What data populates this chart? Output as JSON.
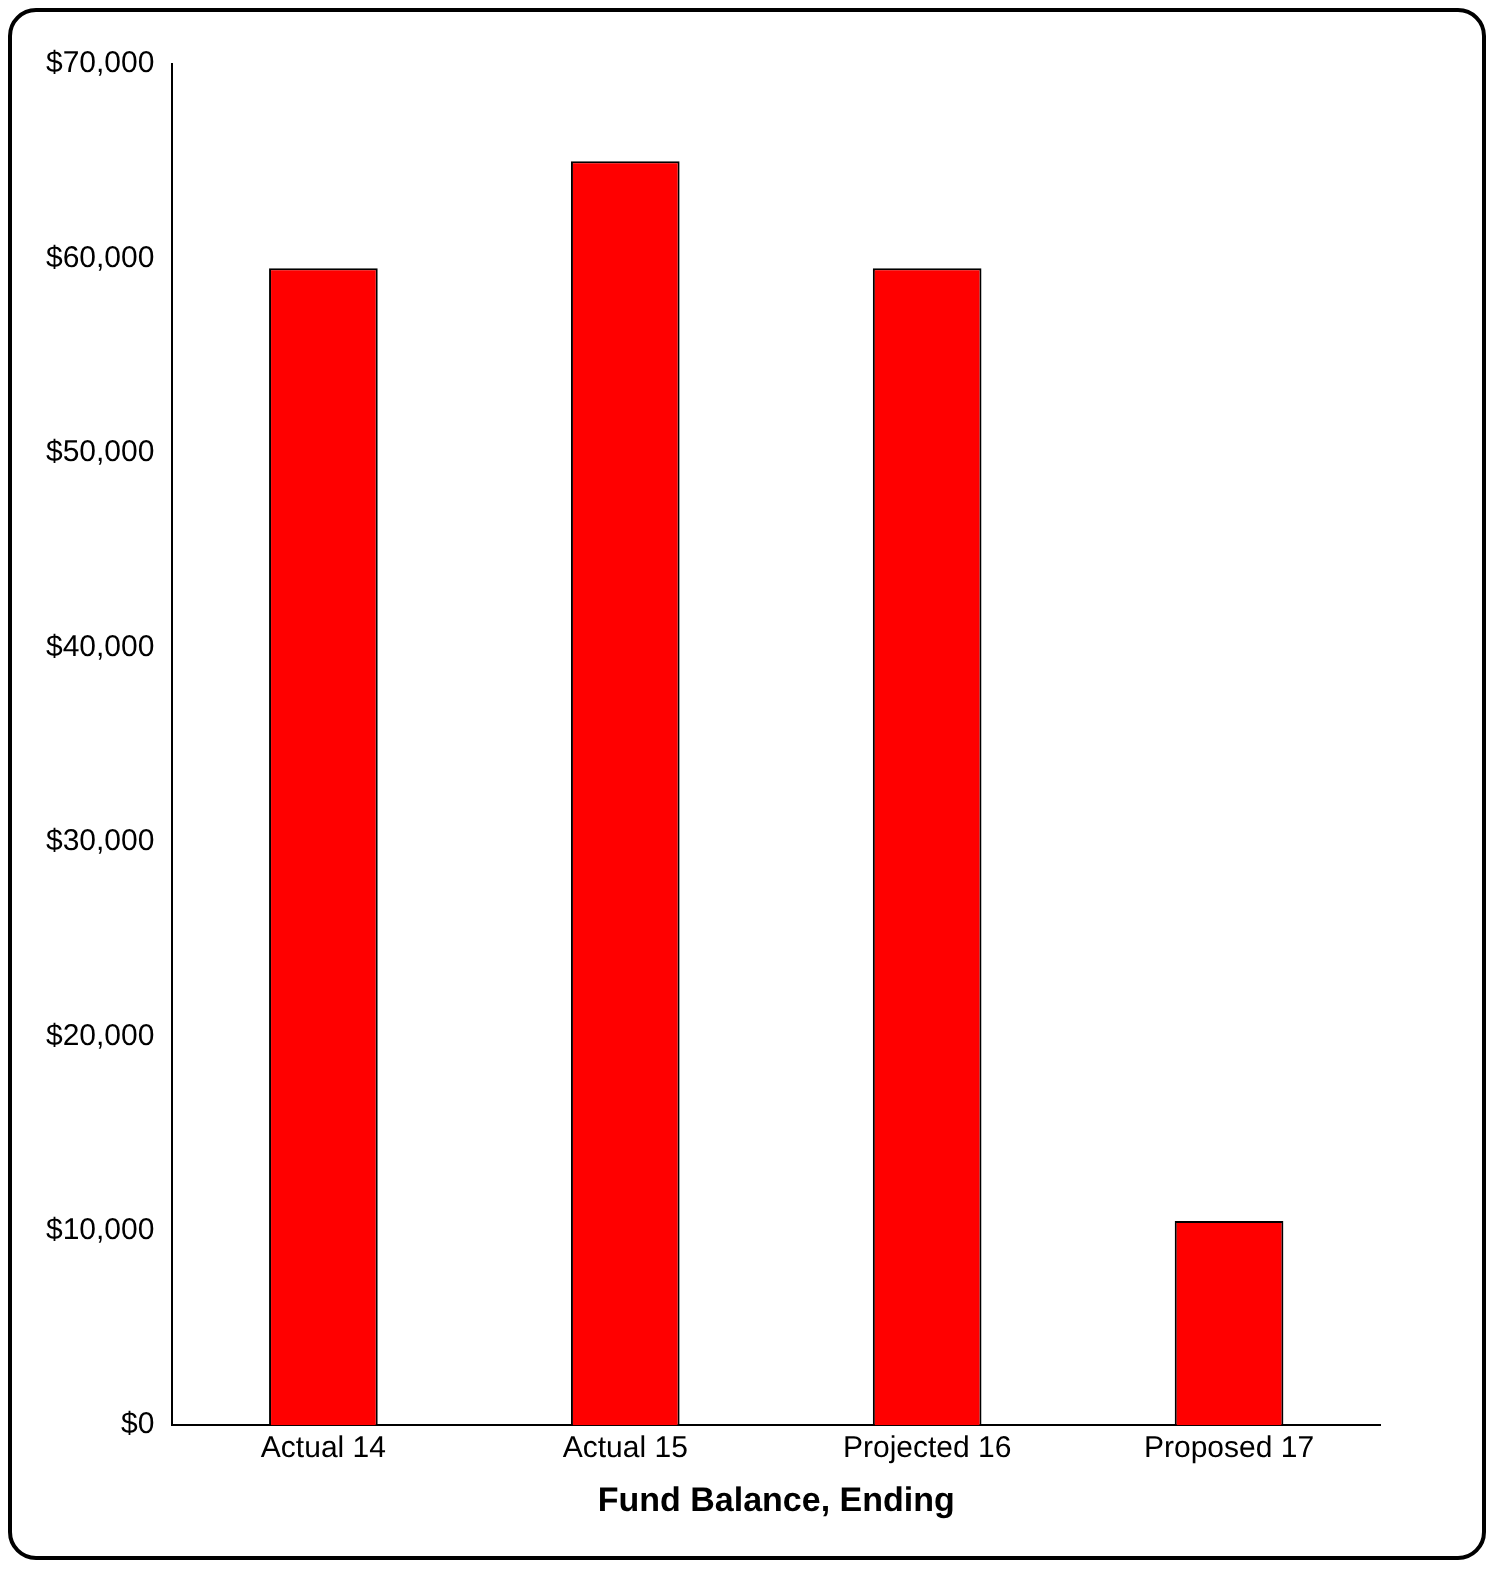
{
  "chart_data": {
    "type": "bar",
    "xlabel": "Fund Balance, Ending",
    "categories": [
      "Actual 14",
      "Actual 15",
      "Projected 16",
      "Proposed 17"
    ],
    "series": [
      {
        "color": "#ff0000",
        "values": [
          59500,
          65000,
          59500,
          10500
        ]
      }
    ],
    "ylim": [
      0,
      70000
    ],
    "yticks": [
      {
        "value": 0,
        "label": "$0"
      },
      {
        "value": 10000,
        "label": "$10,000"
      },
      {
        "value": 20000,
        "label": "$20,000"
      },
      {
        "value": 30000,
        "label": "$30,000"
      },
      {
        "value": 40000,
        "label": "$40,000"
      },
      {
        "value": 50000,
        "label": "$50,000"
      },
      {
        "value": 60000,
        "label": "$60,000"
      },
      {
        "value": 70000,
        "label": "$70,000"
      }
    ],
    "grid": false,
    "legend": false
  }
}
